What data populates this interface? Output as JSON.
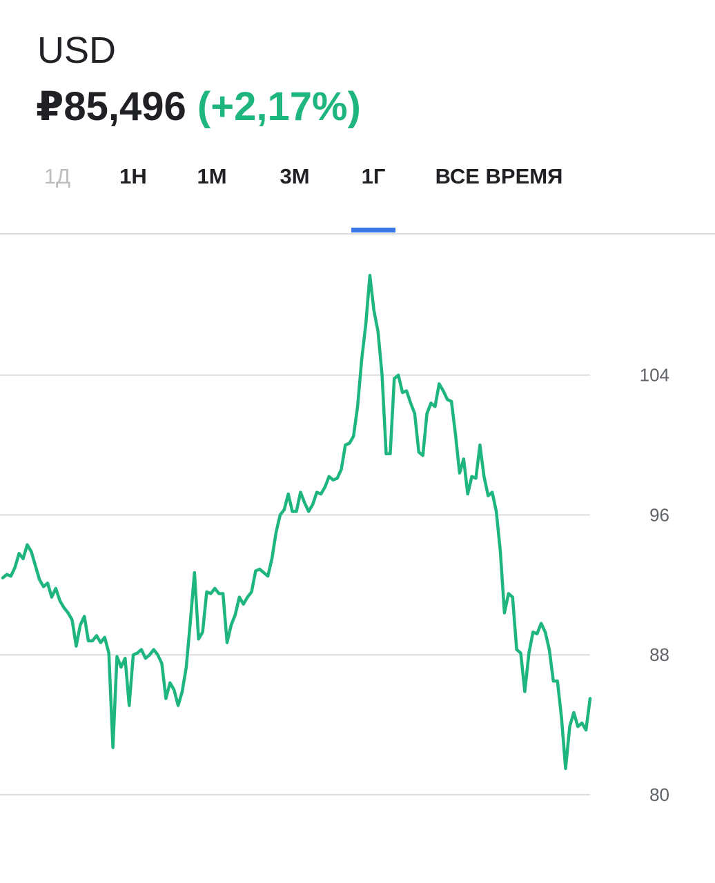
{
  "header": {
    "title": "USD",
    "price": "₽85,496",
    "change": "(+2,17%)"
  },
  "tabs": [
    "1Д",
    "1Н",
    "1М",
    "3М",
    "1Г",
    "ВСЕ ВРЕМЯ"
  ],
  "selected_tab": 4,
  "disabled_tabs": [
    0
  ],
  "chart_data": {
    "type": "line",
    "series": [
      {
        "color": "#1fb57e",
        "values": [
          92.4,
          92.6,
          92.5,
          93.0,
          93.8,
          93.5,
          94.3,
          93.9,
          93.1,
          92.3,
          91.9,
          92.1,
          91.3,
          91.8,
          91.1,
          90.7,
          90.4,
          90.0,
          88.5,
          89.7,
          90.2,
          88.8,
          88.8,
          89.1,
          88.7,
          89.0,
          88.1,
          82.7,
          87.9,
          87.3,
          87.8,
          85.1,
          88.0,
          88.1,
          88.3,
          87.8,
          88.0,
          88.3,
          88.0,
          87.5,
          85.5,
          86.4,
          86.0,
          85.1,
          85.9,
          87.3,
          89.9,
          92.7,
          88.9,
          89.3,
          91.6,
          91.5,
          91.8,
          91.5,
          91.5,
          88.7,
          89.7,
          90.3,
          91.3,
          90.9,
          91.3,
          91.6,
          92.8,
          92.9,
          92.7,
          92.5,
          93.5,
          95.0,
          96.0,
          96.3,
          97.2,
          96.2,
          96.2,
          97.3,
          96.7,
          96.2,
          96.6,
          97.3,
          97.2,
          97.6,
          98.2,
          98.0,
          98.1,
          98.6,
          100.0,
          100.1,
          100.5,
          102.2,
          104.9,
          106.9,
          109.7,
          107.7,
          106.5,
          104.0,
          99.5,
          99.5,
          103.8,
          104.0,
          103.0,
          103.1,
          102.4,
          101.8,
          99.6,
          99.4,
          101.8,
          102.4,
          102.2,
          103.5,
          103.1,
          102.6,
          102.5,
          100.6,
          98.4,
          99.2,
          97.2,
          98.2,
          98.1,
          100.0,
          98.2,
          97.1,
          97.3,
          96.2,
          93.9,
          90.4,
          91.5,
          91.3,
          88.3,
          88.1,
          85.9,
          88.1,
          89.3,
          89.2,
          89.8,
          89.3,
          88.3,
          86.5,
          86.5,
          84.4,
          81.5,
          83.9,
          84.7,
          83.9,
          84.1,
          83.7,
          85.5
        ]
      }
    ],
    "ylim": [
      80,
      112
    ],
    "yticks": [
      80,
      88,
      96,
      104
    ],
    "grid": true
  }
}
